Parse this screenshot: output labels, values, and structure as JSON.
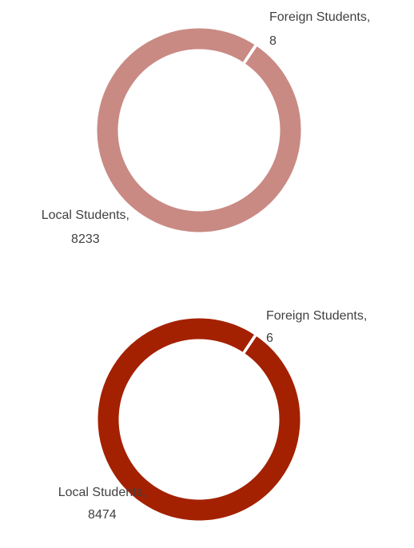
{
  "chart_data": [
    {
      "type": "donut",
      "categories": [
        "Local Students,",
        "Foreign Students,"
      ],
      "values": [
        8233,
        8
      ],
      "colors": [
        "#c98a84",
        "#c98a84"
      ]
    },
    {
      "type": "donut",
      "categories": [
        "Local Students,",
        "Foreign Students,"
      ],
      "values": [
        8474,
        6
      ],
      "colors": [
        "#a32100",
        "#a32100"
      ]
    }
  ]
}
